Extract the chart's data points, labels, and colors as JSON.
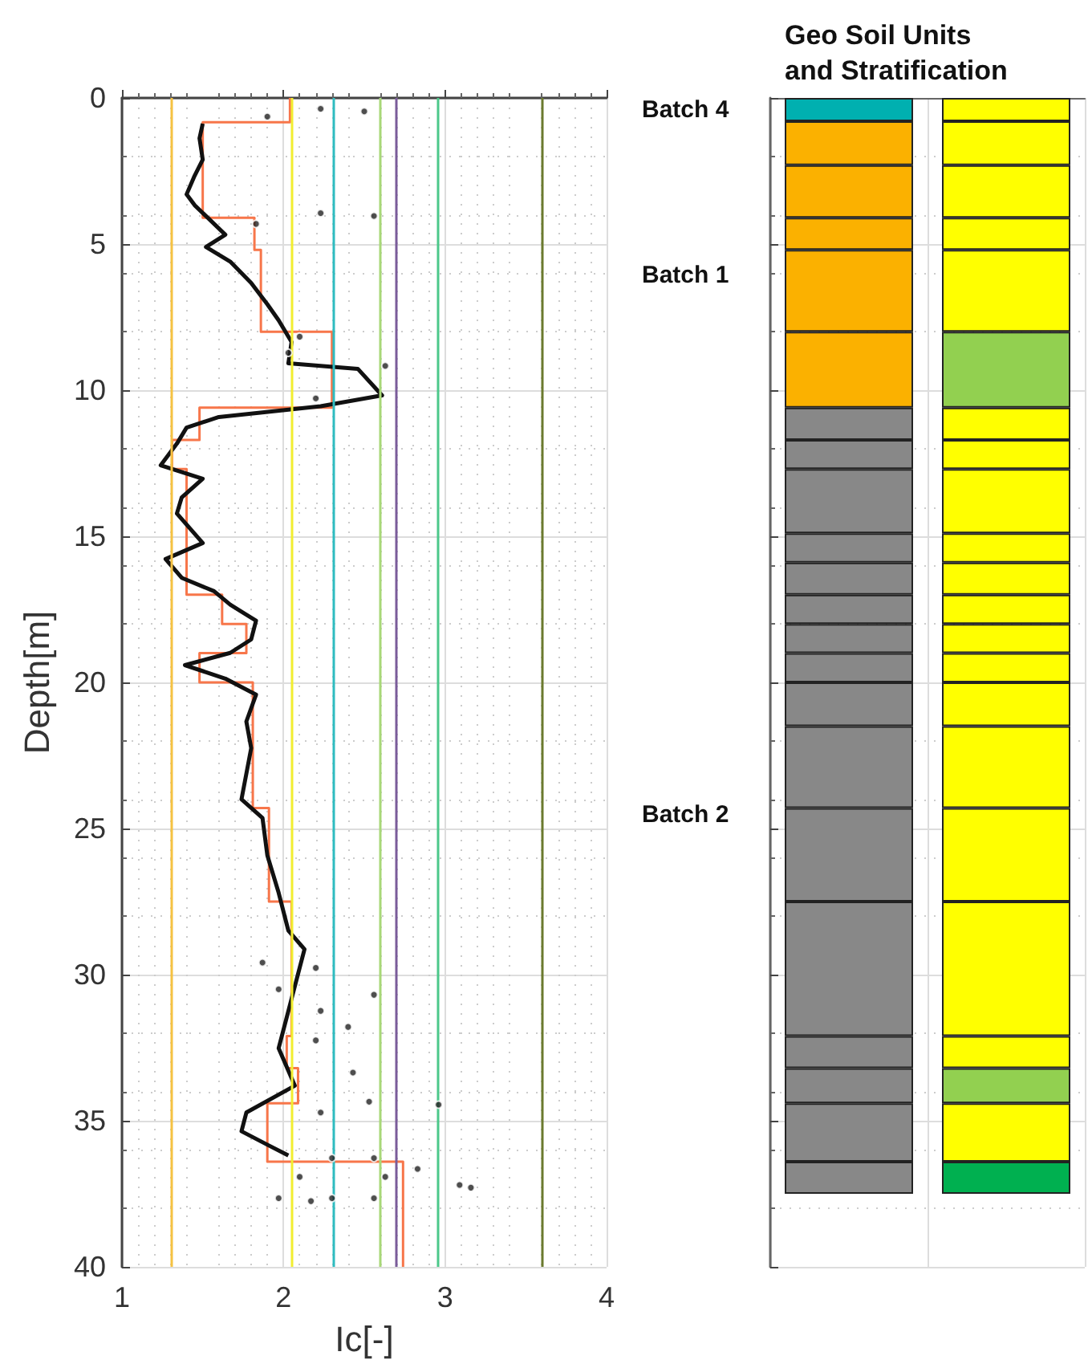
{
  "chart_data": [
    {
      "type": "line",
      "xlabel": "Ic[-]",
      "ylabel": "Depth[m]",
      "xlim": [
        1,
        4
      ],
      "xticks": [
        1,
        2,
        3,
        4
      ],
      "ylim": [
        40,
        0
      ],
      "yticks": [
        0,
        5,
        10,
        15,
        20,
        25,
        30,
        35,
        40
      ],
      "grid": true,
      "ref_lines": [
        {
          "axis": "x",
          "value": 1.31,
          "color": "#f5c242"
        },
        {
          "axis": "x",
          "value": 2.05,
          "color": "#f2ee30"
        },
        {
          "axis": "x",
          "value": 2.31,
          "color": "#2fbcc0"
        },
        {
          "axis": "x",
          "value": 2.6,
          "color": "#a8d878"
        },
        {
          "axis": "x",
          "value": 2.7,
          "color": "#7a5c9a"
        },
        {
          "axis": "x",
          "value": 2.95,
          "color": "#4cc88a"
        },
        {
          "axis": "x",
          "value": 3.6,
          "color": "#6b7a2e"
        }
      ],
      "series": [
        {
          "type": "line",
          "color": "#f7764a",
          "x": [
            2.04,
            2.04,
            1.5,
            1.5,
            1.82,
            1.82,
            1.86,
            1.86,
            2.3,
            2.3,
            1.48,
            1.48,
            1.31,
            1.31,
            1.4,
            1.4,
            1.62,
            1.62,
            1.77,
            1.77,
            1.48,
            1.48,
            1.81,
            1.81,
            1.91,
            1.91,
            2.05,
            2.05,
            2.02,
            2.02,
            2.09,
            2.09,
            1.9,
            1.9,
            2.74,
            2.74
          ],
          "values": [
            0,
            0.83,
            0.83,
            4.1,
            4.1,
            5.2,
            5.2,
            8.0,
            8.0,
            10.6,
            10.6,
            11.7,
            11.7,
            12.7,
            12.7,
            17.0,
            17.0,
            18.0,
            18.0,
            19.0,
            19.0,
            20.0,
            20.0,
            24.3,
            24.3,
            27.5,
            27.5,
            32.1,
            32.1,
            33.2,
            33.2,
            34.4,
            34.4,
            36.4,
            36.4,
            40
          ]
        },
        {
          "type": "line",
          "color": "#111111",
          "x": [
            1.5,
            1.48,
            1.5,
            1.45,
            1.4,
            1.45,
            1.64,
            1.52,
            1.67,
            1.8,
            1.9,
            1.97,
            2.05,
            2.03,
            2.46,
            2.61,
            2.23,
            1.6,
            1.4,
            1.34,
            1.24,
            1.5,
            1.37,
            1.34,
            1.5,
            1.27,
            1.37,
            1.57,
            1.67,
            1.83,
            1.8,
            1.67,
            1.39,
            1.64,
            1.83,
            1.77,
            1.8,
            1.74,
            1.87,
            1.9,
            1.97,
            2.03,
            2.13,
            1.97,
            2.07,
            1.77,
            1.74,
            1.9,
            2.03
          ],
          "values": [
            0.88,
            1.38,
            2.11,
            2.66,
            3.3,
            3.67,
            4.68,
            5.1,
            5.6,
            6.33,
            7.06,
            7.61,
            8.35,
            9.08,
            9.27,
            10.18,
            10.55,
            10.92,
            11.28,
            11.83,
            12.57,
            13.03,
            13.67,
            14.22,
            15.23,
            15.78,
            16.42,
            16.88,
            17.34,
            17.89,
            18.53,
            18.99,
            19.41,
            19.87,
            20.42,
            21.34,
            22.25,
            24.0,
            24.64,
            25.92,
            27.2,
            28.49,
            29.13,
            32.52,
            33.8,
            34.72,
            35.36,
            35.82,
            36.19
          ]
        },
        {
          "type": "scatter",
          "color": "#222222",
          "x": [
            2.23,
            2.5,
            1.9,
            2.56,
            2.23,
            1.83,
            2.1,
            2.03,
            2.63,
            2.2,
            1.87,
            2.2,
            2.56,
            2.23,
            1.97,
            2.4,
            2.2,
            2.43,
            2.53,
            2.96,
            2.23,
            2.3,
            2.56,
            2.83,
            3.09,
            3.16,
            2.63,
            2.1,
            1.97,
            2.17,
            2.56,
            2.3
          ],
          "values": [
            0.37,
            0.46,
            0.64,
            4.04,
            3.94,
            4.31,
            8.17,
            8.72,
            9.17,
            10.28,
            29.59,
            29.77,
            30.69,
            31.24,
            30.5,
            31.79,
            32.25,
            33.35,
            34.35,
            34.45,
            34.72,
            36.28,
            36.28,
            36.65,
            37.2,
            37.29,
            36.92,
            36.92,
            37.65,
            37.75,
            37.65,
            37.65
          ]
        }
      ]
    },
    {
      "type": "bar",
      "title": "Geo Soil Units and Stratification",
      "stacked": true,
      "categories": [
        null,
        null
      ],
      "ylim": [
        40,
        0
      ],
      "yticks": [
        0,
        5,
        10,
        15,
        20,
        25,
        30,
        35,
        40
      ],
      "tick_labels": false,
      "grid": true,
      "annotations": [
        "Batch 4",
        "Batch 1",
        "Batch 2"
      ],
      "series": [
        {
          "values": [
            0.8,
            0.8
          ],
          "colors": [
            "#00b0b0",
            "#ffff00"
          ]
        },
        {
          "values": [
            1.5,
            1.5
          ],
          "colors": [
            "#fbb100",
            "#ffff00"
          ]
        },
        {
          "values": [
            1.8,
            1.8
          ],
          "colors": [
            "#fbb100",
            "#ffff00"
          ]
        },
        {
          "values": [
            1.1,
            1.1
          ],
          "colors": [
            "#fbb100",
            "#ffff00"
          ]
        },
        {
          "values": [
            2.8,
            2.8
          ],
          "colors": [
            "#fbb100",
            "#ffff00"
          ]
        },
        {
          "values": [
            2.6,
            2.6
          ],
          "colors": [
            "#fbb100",
            "#92d050"
          ]
        },
        {
          "values": [
            1.1,
            1.1
          ],
          "colors": [
            "#888888",
            "#ffff00"
          ]
        },
        {
          "values": [
            1.0,
            1.0
          ],
          "colors": [
            "#888888",
            "#ffff00"
          ]
        },
        {
          "values": [
            2.2,
            2.2
          ],
          "colors": [
            "#888888",
            "#ffff00"
          ]
        },
        {
          "values": [
            1.0,
            1.0
          ],
          "colors": [
            "#888888",
            "#ffff00"
          ]
        },
        {
          "values": [
            1.1,
            1.1
          ],
          "colors": [
            "#888888",
            "#ffff00"
          ]
        },
        {
          "values": [
            1.0,
            1.0
          ],
          "colors": [
            "#888888",
            "#ffff00"
          ]
        },
        {
          "values": [
            1.0,
            1.0
          ],
          "colors": [
            "#888888",
            "#ffff00"
          ]
        },
        {
          "values": [
            1.0,
            1.0
          ],
          "colors": [
            "#888888",
            "#ffff00"
          ]
        },
        {
          "values": [
            1.5,
            1.5
          ],
          "colors": [
            "#888888",
            "#ffff00"
          ]
        },
        {
          "values": [
            2.8,
            2.8
          ],
          "colors": [
            "#888888",
            "#ffff00"
          ]
        },
        {
          "values": [
            3.2,
            3.2
          ],
          "colors": [
            "#888888",
            "#ffff00"
          ]
        },
        {
          "values": [
            4.6,
            4.6
          ],
          "colors": [
            "#888888",
            "#ffff00"
          ]
        },
        {
          "values": [
            1.1,
            1.1
          ],
          "colors": [
            "#888888",
            "#ffff00"
          ]
        },
        {
          "values": [
            1.2,
            1.2
          ],
          "colors": [
            "#888888",
            "#92d050"
          ]
        },
        {
          "values": [
            2.0,
            2.0
          ],
          "colors": [
            "#888888",
            "#ffff00"
          ]
        },
        {
          "values": [
            1.1,
            1.1
          ],
          "colors": [
            "#888888",
            "#00b050"
          ]
        }
      ]
    }
  ]
}
